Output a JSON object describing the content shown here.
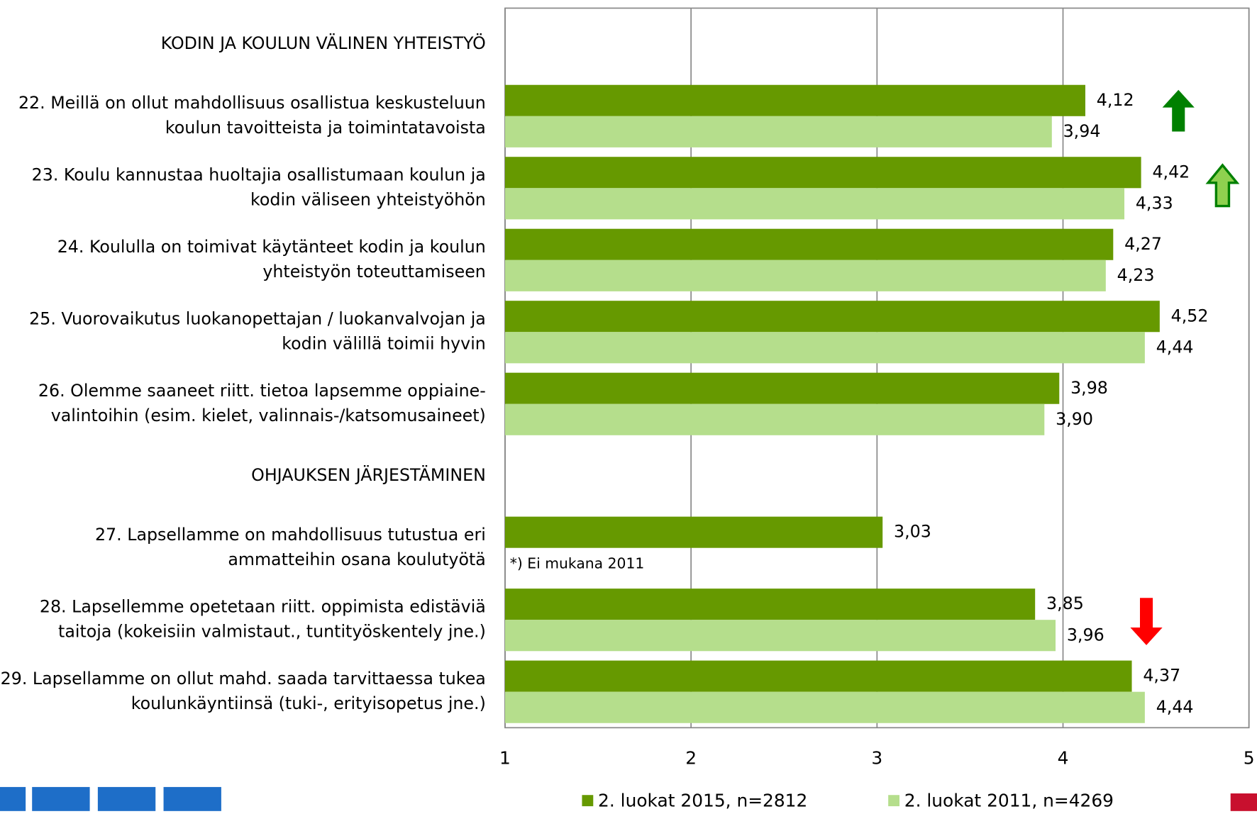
{
  "chart_data": {
    "type": "barh",
    "categories": [
      "KODIN JA KOULUN VÄLINEN YHTEISTYÖ",
      "22. Meillä on ollut mahdollisuus osallistua keskusteluun\nkoulun tavoitteista ja toimintatavoista",
      "23. Koulu kannustaa huoltajia osallistumaan koulun ja\nkodin väliseen yhteistyöhön",
      "24. Koululla on toimivat käytänteet kodin ja koulun\nyhteistyön toteuttamiseen",
      "25. Vuorovaikutus luokanopettajan / luokanvalvojan ja\nkodin välillä toimii hyvin",
      "26. Olemme saaneet riitt. tietoa lapsemme oppiaine-\nvalintoihin (esim. kielet, valinnais-/katsomusaineet)",
      "OHJAUKSEN JÄRJESTÄMINEN",
      "27. Lapsellamme on mahdollisuus tutustua eri\nammatteihin osana koulutyötä",
      "28. Lapsellemme opetetaan riitt. oppimista edistäviä\ntaitoja (kokeisiin valmistaut., tuntityöskentely jne.)",
      "29. Lapsellamme on ollut mahd. saada tarvittaessa tukea\nkoulunkäyntiinsä (tuki-, erityisopetus jne.)"
    ],
    "series": [
      {
        "name": "2. luokat 2015, n=2812",
        "color": "#669900",
        "values": [
          null,
          4.12,
          4.42,
          4.27,
          4.52,
          3.98,
          null,
          3.03,
          3.85,
          4.37
        ],
        "value_labels": [
          null,
          "4,12",
          "4,42",
          "4,27",
          "4,52",
          "3,98",
          null,
          "3,03",
          "3,85",
          "4,37"
        ]
      },
      {
        "name": "2. luokat 2011, n=4269",
        "color": "#b5de8c",
        "values": [
          null,
          3.94,
          4.33,
          4.23,
          4.44,
          3.9,
          null,
          null,
          3.96,
          4.44
        ],
        "value_labels": [
          null,
          "3,94",
          "4,33",
          "4,23",
          "4,44",
          "3,90",
          null,
          null,
          "3,96",
          "4,44"
        ]
      }
    ],
    "annotation": "*) Ei mukana 2011",
    "xlim": [
      1,
      5
    ],
    "xticks": [
      1,
      2,
      3,
      4,
      5
    ],
    "grid": true,
    "legend": "bottom"
  }
}
